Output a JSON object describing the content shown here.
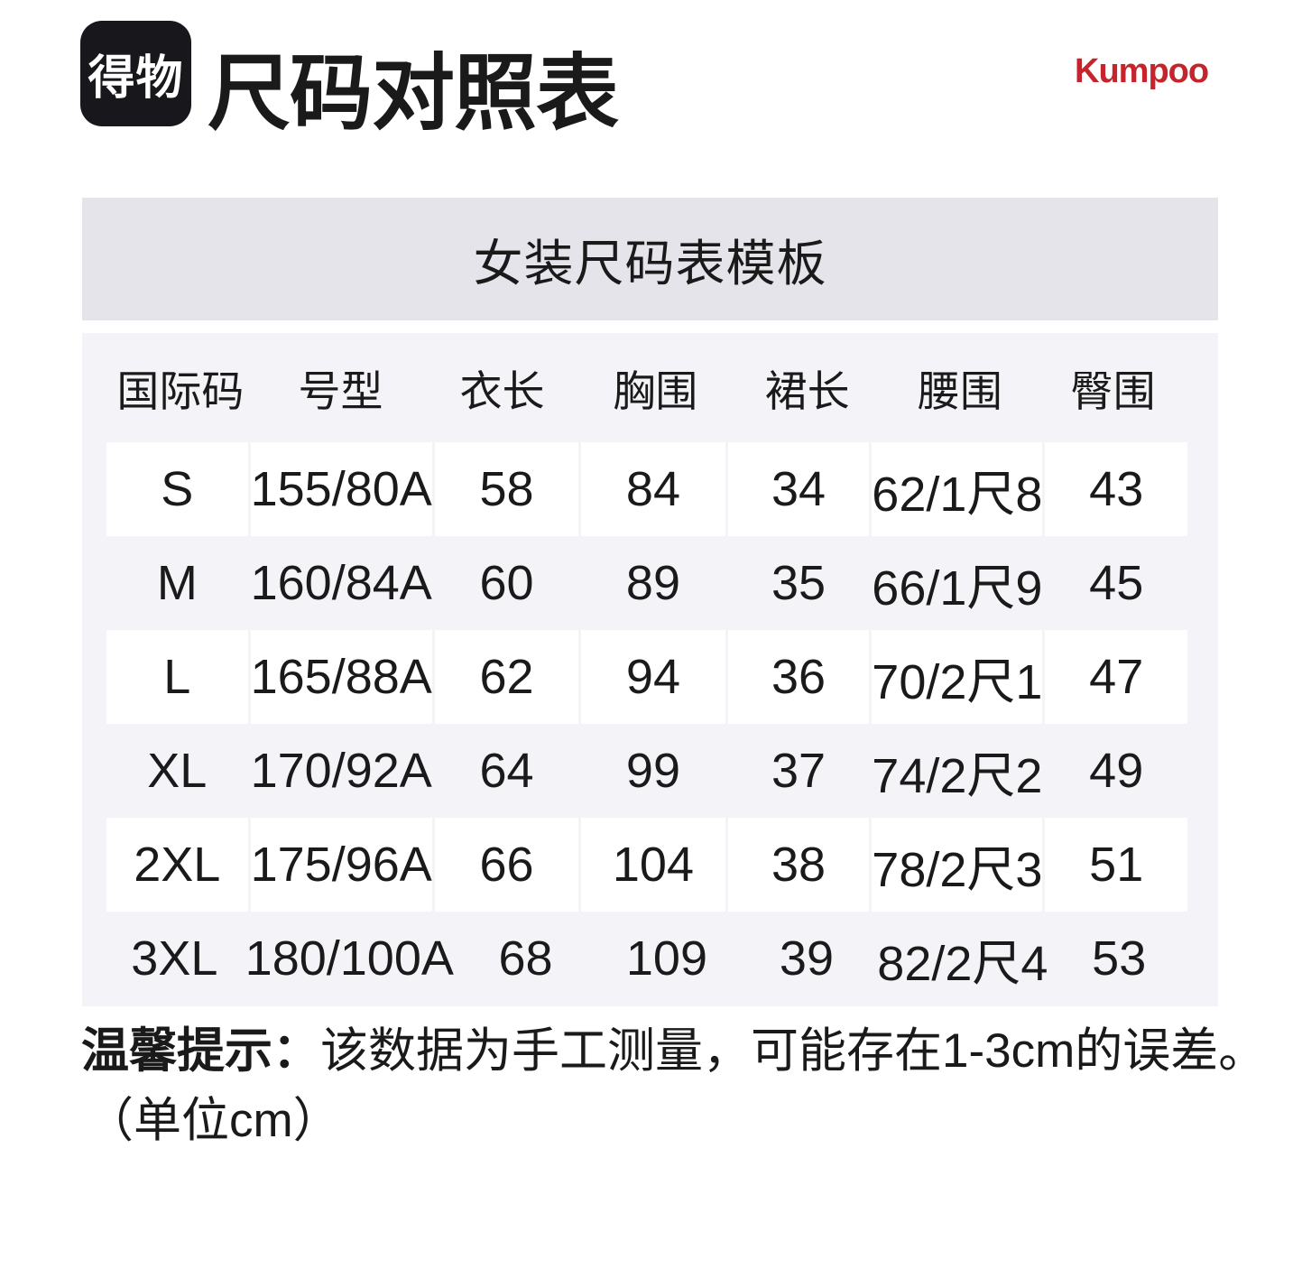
{
  "header": {
    "logo_text": "得物",
    "page_title": "尺码对照表",
    "brand": "Kumpoo"
  },
  "chart_data": {
    "type": "table",
    "title": "女装尺码表模板",
    "columns": [
      "国际码",
      "号型",
      "衣长",
      "胸围",
      "裙长",
      "腰围",
      "臀围"
    ],
    "rows": [
      [
        "S",
        "155/80A",
        "58",
        "84",
        "34",
        "62/1尺8",
        "43"
      ],
      [
        "M",
        "160/84A",
        "60",
        "89",
        "35",
        "66/1尺9",
        "45"
      ],
      [
        "L",
        "165/88A",
        "62",
        "94",
        "36",
        "70/2尺1",
        "47"
      ],
      [
        "XL",
        "170/92A",
        "64",
        "99",
        "37",
        "74/2尺2",
        "49"
      ],
      [
        "2XL",
        "175/96A",
        "66",
        "104",
        "38",
        "78/2尺3",
        "51"
      ],
      [
        "3XL",
        "180/100A",
        "68",
        "109",
        "39",
        "82/2尺4",
        "53"
      ]
    ],
    "unit": "cm",
    "layout": {
      "striped_white_rows": [
        "S",
        "L",
        "2XL"
      ],
      "grid": "off",
      "legend": "none"
    }
  },
  "note": {
    "label": "温馨提示：",
    "text": "该数据为手工测量，可能存在1-3cm的误差。",
    "unit_line": "（单位cm）"
  },
  "colors": {
    "brand_red": "#C5242C",
    "logo_bg": "#17171C",
    "banner_bg": "#E5E4EA",
    "table_bg": "#F4F4F8",
    "cell_bg": "#FFFFFF",
    "text": "#1A1A1A"
  }
}
